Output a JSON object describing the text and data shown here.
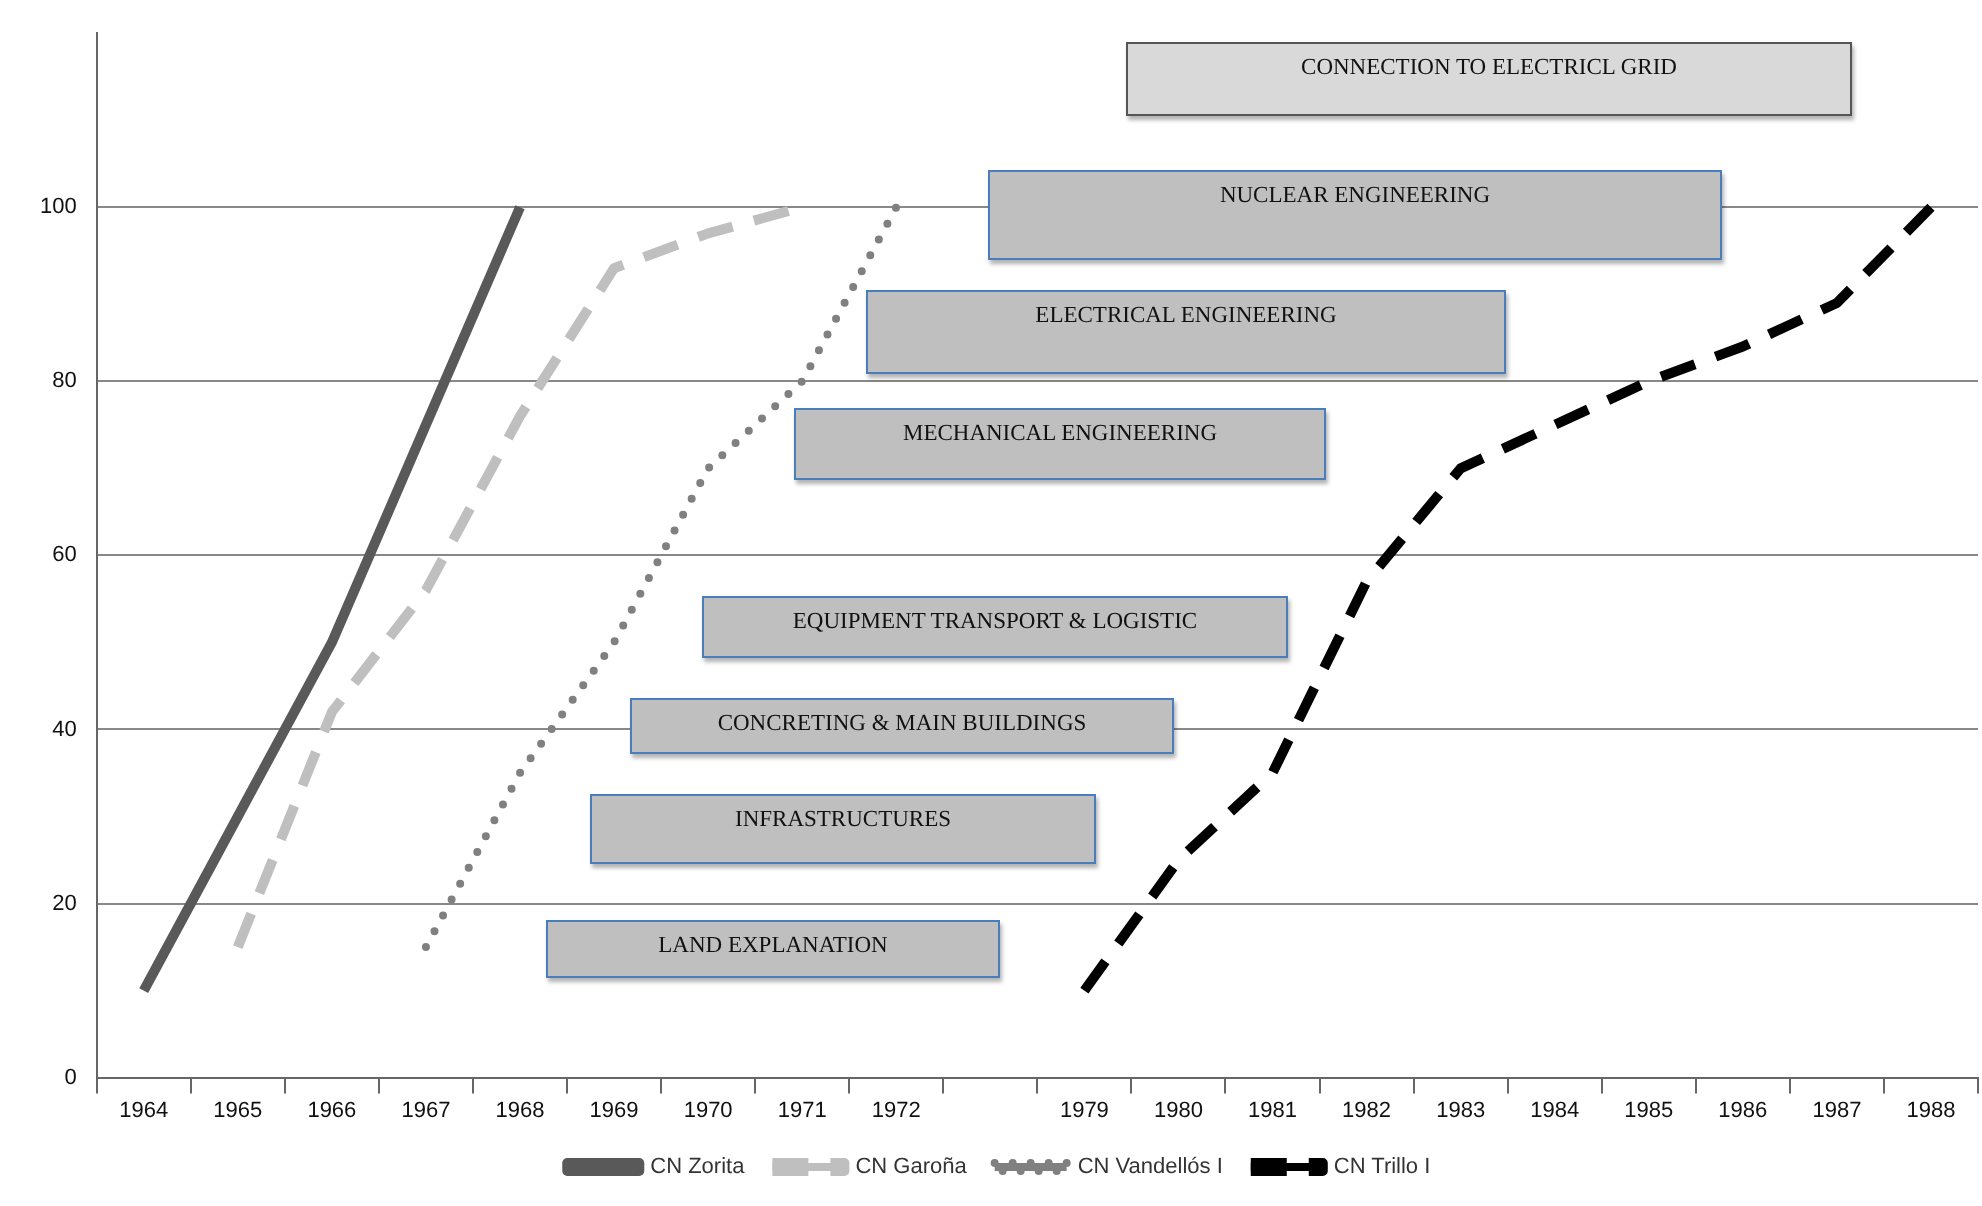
{
  "chart_data": {
    "type": "line",
    "categories": [
      "1964",
      "1965",
      "1966",
      "1967",
      "1968",
      "1969",
      "1970",
      "1971",
      "1972",
      null,
      "1979",
      "1980",
      "1981",
      "1982",
      "1983",
      "1984",
      "1985",
      "1986",
      "1987",
      "1988"
    ],
    "series": [
      {
        "name": "CN Zorita",
        "color": "#595959",
        "line_style": "solid",
        "values": [
          10,
          30,
          50,
          75,
          100,
          null,
          null,
          null,
          null,
          null,
          null,
          null,
          null,
          null,
          null,
          null,
          null,
          null,
          null,
          null
        ]
      },
      {
        "name": "CN Garoña",
        "color": "#bfbfbf",
        "line_style": "dashed",
        "values": [
          null,
          15,
          42,
          56,
          76,
          93,
          97,
          100,
          null,
          null,
          null,
          null,
          null,
          null,
          null,
          null,
          null,
          null,
          null,
          null
        ]
      },
      {
        "name": "CN Vandellós I",
        "color": "#808080",
        "line_style": "dotted",
        "values": [
          null,
          null,
          null,
          15,
          35,
          50,
          70,
          80,
          100,
          null,
          null,
          null,
          null,
          null,
          null,
          null,
          null,
          null,
          null,
          null
        ]
      },
      {
        "name": "CN Trillo I",
        "color": "#000000",
        "line_style": "dashed",
        "values": [
          null,
          null,
          null,
          null,
          null,
          null,
          null,
          null,
          null,
          null,
          10,
          25,
          35,
          57,
          70,
          75,
          80,
          84,
          89,
          100
        ]
      }
    ],
    "ylim": [
      0,
      120
    ],
    "yticks": [
      0,
      20,
      40,
      60,
      80,
      100
    ],
    "grid": "y",
    "legend": "bottom",
    "marker": "none",
    "annotations": [
      "CONNECTION TO ELECTRICL GRID",
      "NUCLEAR ENGINEERING",
      "ELECTRICAL ENGINEERING",
      "MECHANICAL ENGINEERING",
      "EQUIPMENT TRANSPORT & LOGISTIC",
      "CONCRETING & MAIN BUILDINGS",
      "INFRASTRUCTURES",
      "LAND EXPLANATION"
    ]
  }
}
